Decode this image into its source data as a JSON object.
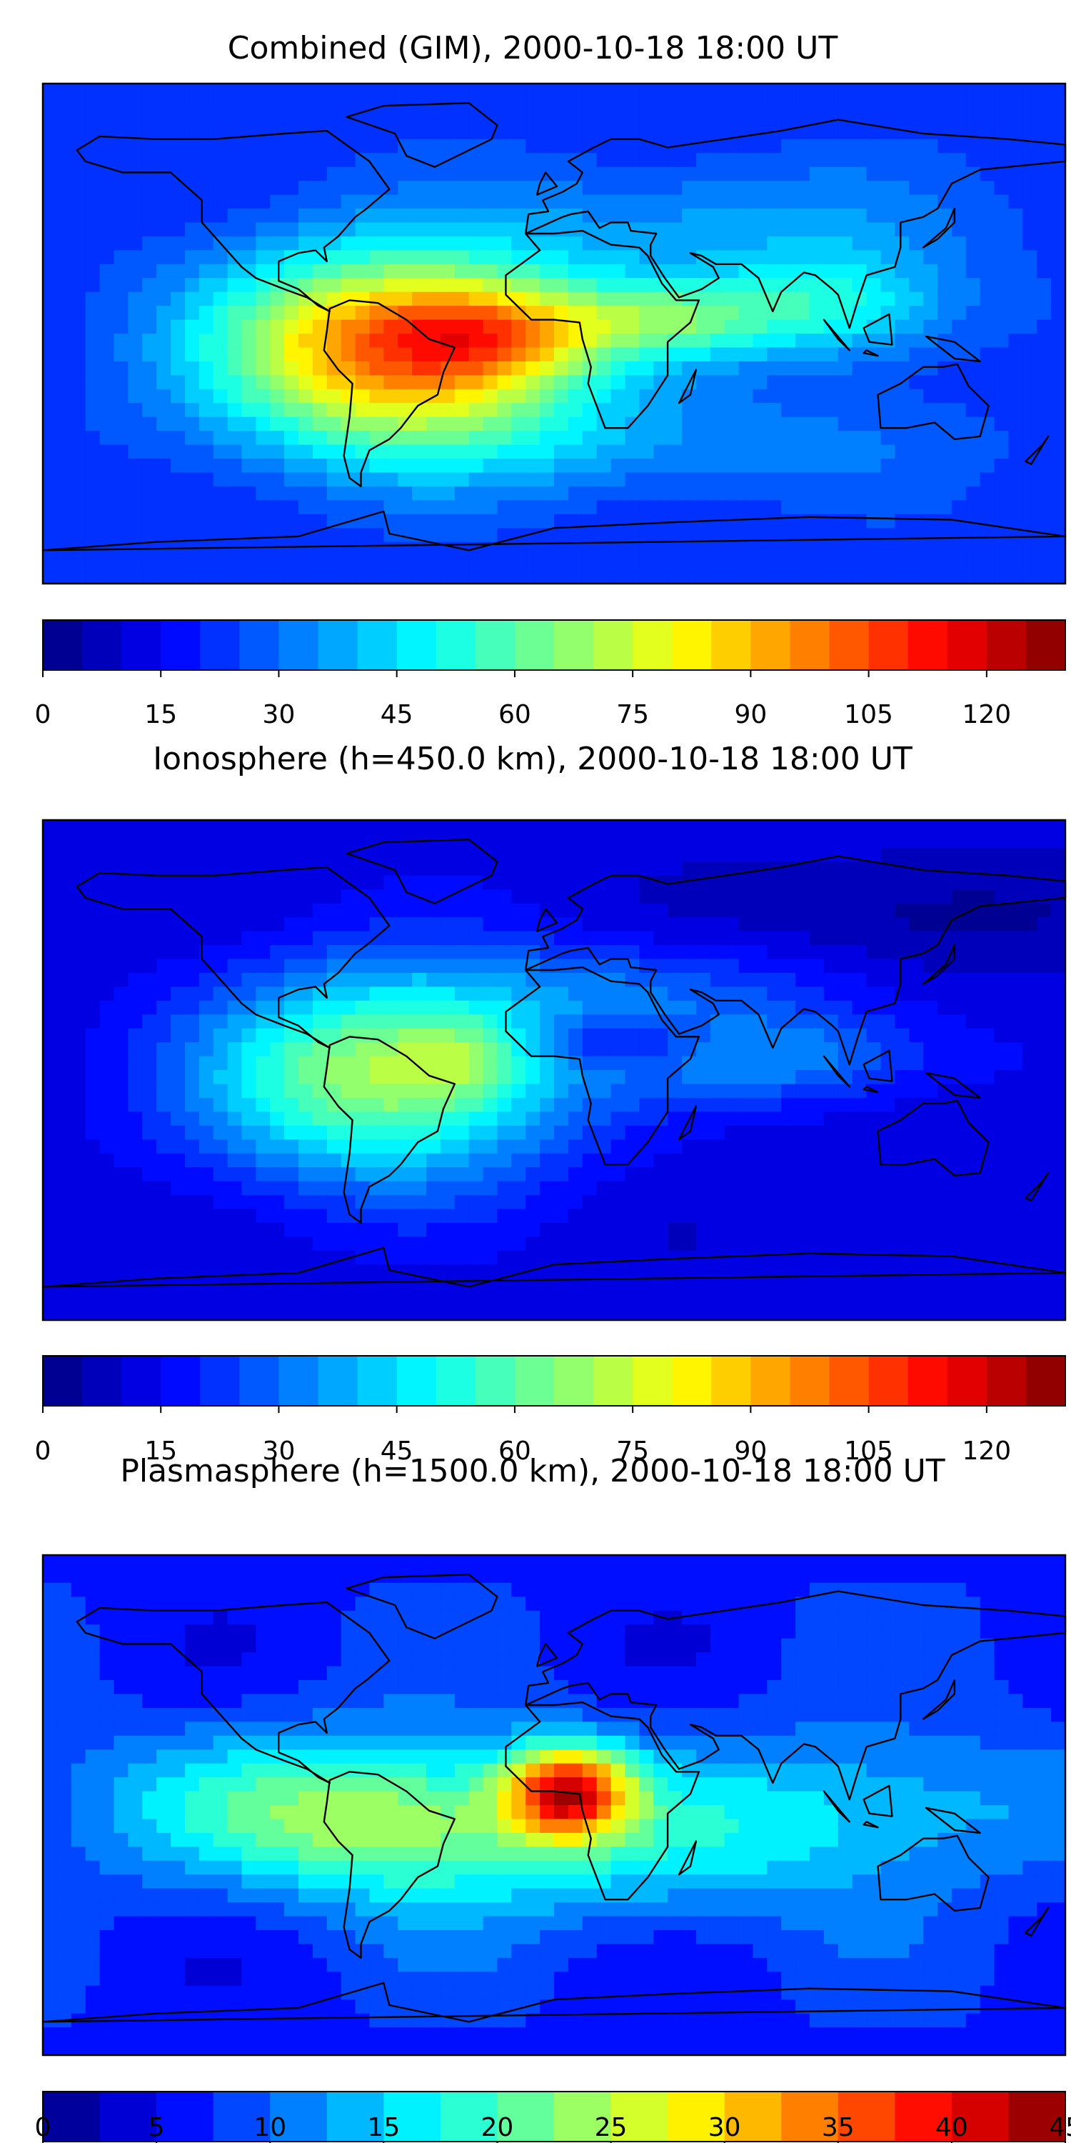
{
  "panels": [
    {
      "title": "Combined (GIM), 2000-10-18 18:00 UT",
      "colorbar": {
        "min": 0,
        "max": 130,
        "levels": 26,
        "tick_labels": [
          "0",
          "15",
          "30",
          "45",
          "60",
          "75",
          "90",
          "105",
          "120"
        ],
        "tick_values": [
          0,
          15,
          30,
          45,
          60,
          75,
          90,
          105,
          120
        ]
      }
    },
    {
      "title": "Ionosphere  (h=450.0 km), 2000-10-18 18:00 UT",
      "colorbar": {
        "min": 0,
        "max": 130,
        "levels": 26,
        "tick_labels": [
          "0",
          "15",
          "30",
          "45",
          "60",
          "75",
          "90",
          "105",
          "120"
        ],
        "tick_values": [
          0,
          15,
          30,
          45,
          60,
          75,
          90,
          105,
          120
        ]
      }
    },
    {
      "title": "Plasmasphere (h=1500.0 km), 2000-10-18 18:00 UT",
      "colorbar": {
        "min": 0,
        "max": 45,
        "levels": 18,
        "tick_labels": [
          "0",
          "5",
          "10",
          "15",
          "20",
          "25",
          "30",
          "35",
          "40",
          "45"
        ],
        "tick_values": [
          0,
          5,
          10,
          15,
          20,
          25,
          30,
          35,
          40,
          45
        ]
      }
    }
  ],
  "chart_data": [
    {
      "type": "heatmap",
      "title": "Combined (GIM), 2000-10-18 18:00 UT",
      "colormap": "jet",
      "value_range": [
        0,
        130
      ],
      "colorbar_ticks": [
        0,
        15,
        30,
        45,
        60,
        75,
        90,
        105,
        120
      ],
      "peak_value_approx": 110,
      "peak_region": "South America / equatorial Atlantic"
    },
    {
      "type": "heatmap",
      "title": "Ionosphere  (h=450.0 km), 2000-10-18 18:00 UT",
      "colormap": "jet",
      "value_range": [
        0,
        130
      ],
      "colorbar_ticks": [
        0,
        15,
        30,
        45,
        60,
        75,
        90,
        105,
        120
      ],
      "peak_value_approx": 85,
      "peak_region": "northern South America"
    },
    {
      "type": "heatmap",
      "title": "Plasmasphere (h=1500.0 km), 2000-10-18 18:00 UT",
      "colormap": "jet",
      "value_range": [
        0,
        45
      ],
      "colorbar_ticks": [
        0,
        5,
        10,
        15,
        20,
        25,
        30,
        35,
        40,
        45
      ],
      "peak_value_approx": 37,
      "peak_region": "Gulf of Guinea / West Africa"
    }
  ]
}
